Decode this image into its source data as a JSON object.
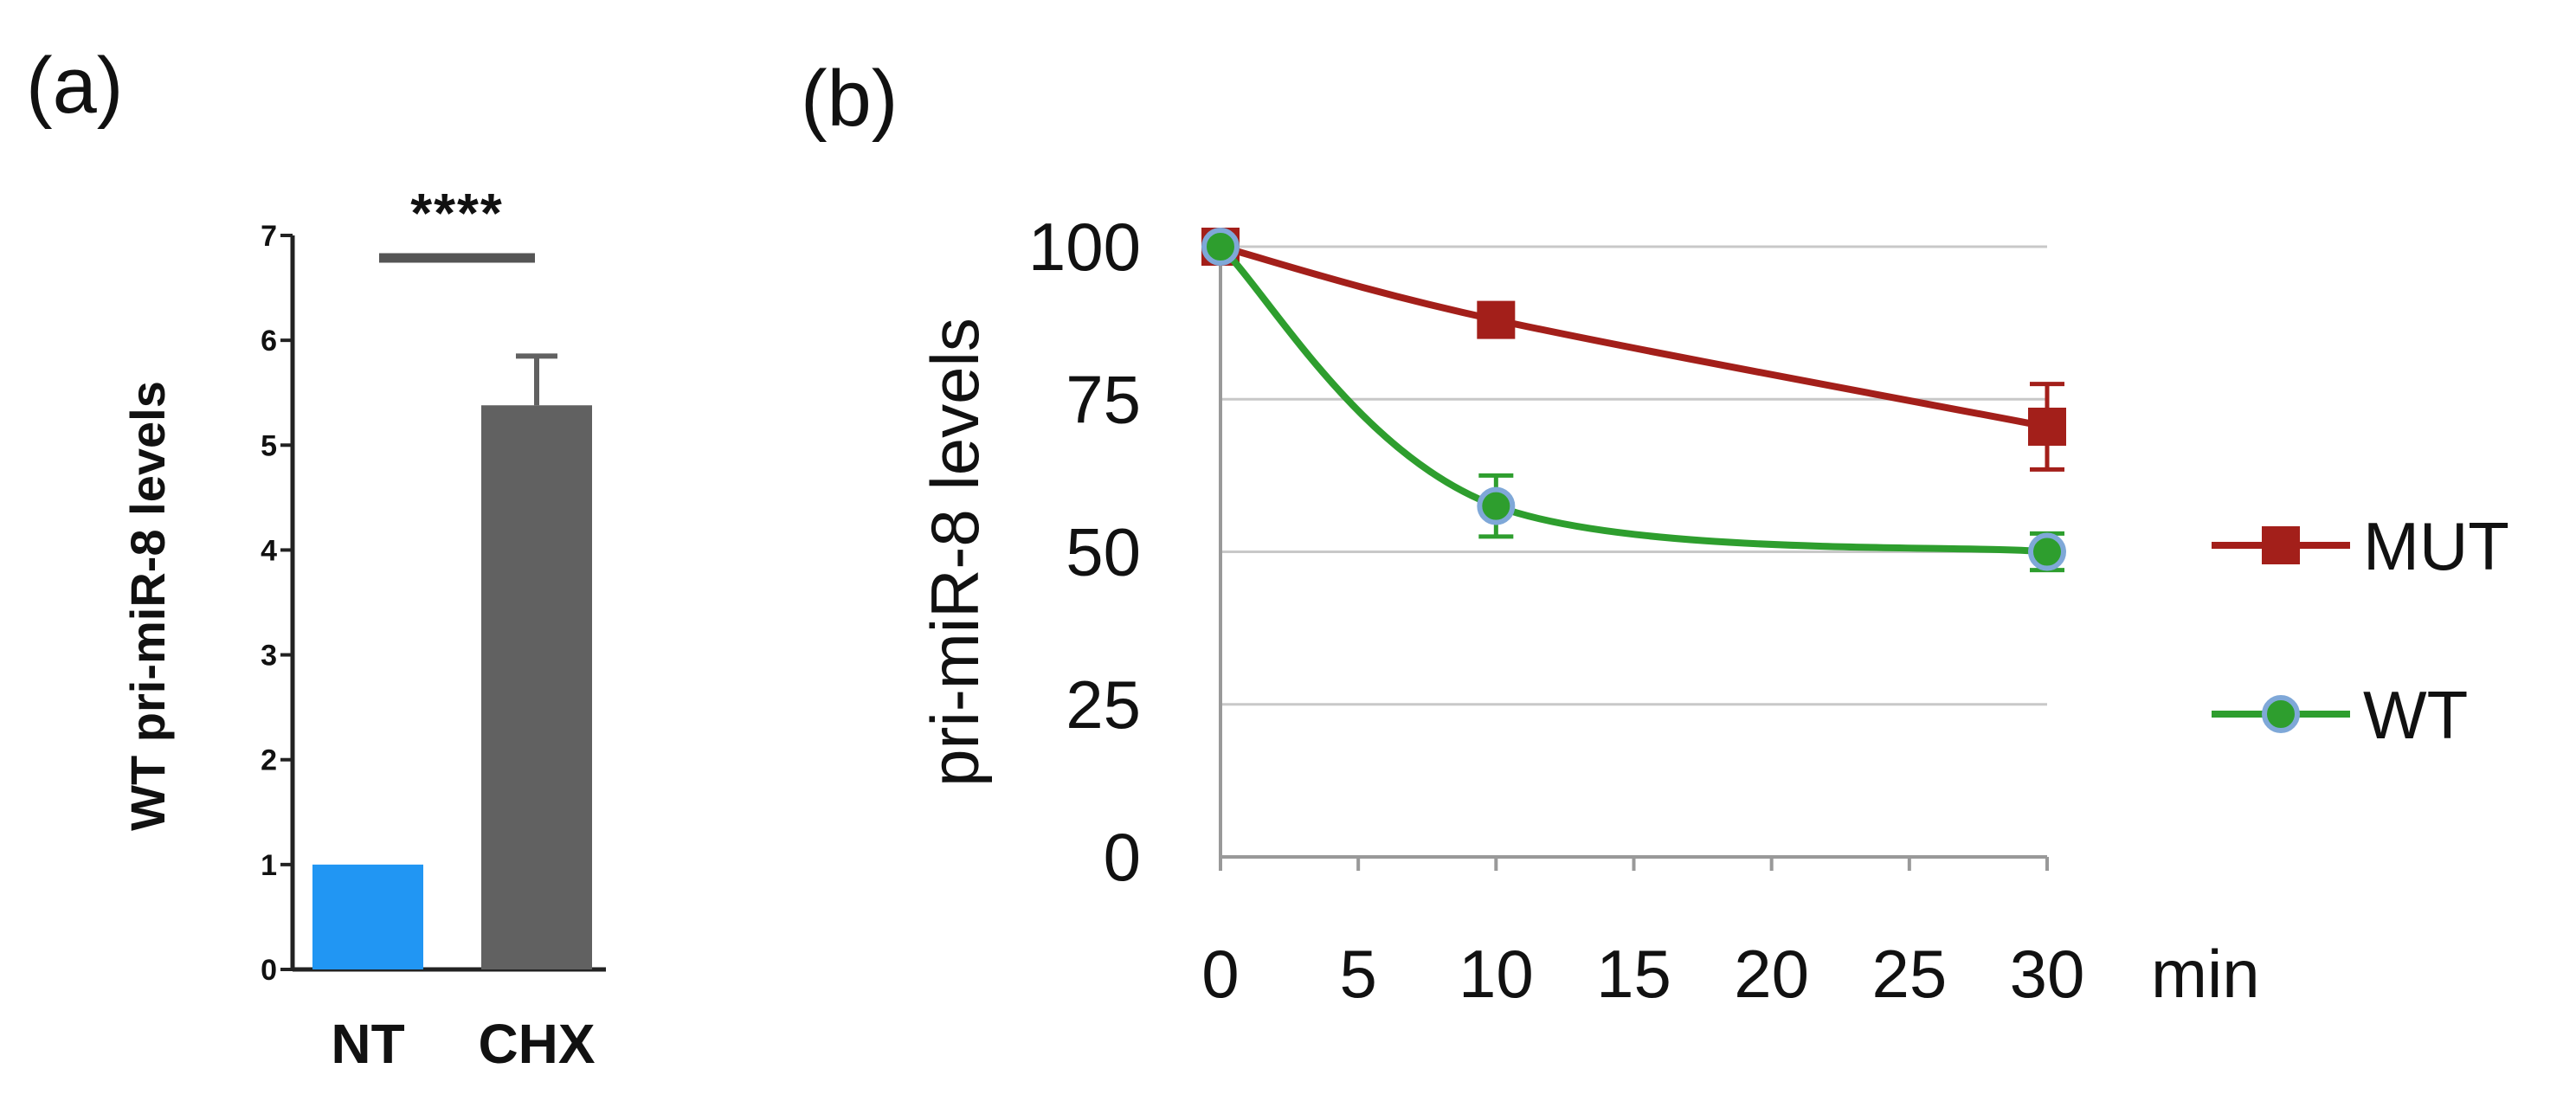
{
  "panels": {
    "a": "(a)",
    "b": "(b)"
  },
  "chart_data": [
    {
      "type": "bar",
      "panel": "a",
      "ylabel": "WT pri-miR-8 levels",
      "xlabel": "",
      "ylim": [
        0,
        7
      ],
      "yticks": [
        0,
        1,
        2,
        3,
        4,
        5,
        6,
        7
      ],
      "categories": [
        "NT",
        "CHX"
      ],
      "values": [
        1.0,
        5.38
      ],
      "errors": [
        0,
        0.47
      ],
      "colors": [
        "#2196F3",
        "#616161"
      ],
      "significance": "****",
      "grid": false
    },
    {
      "type": "line",
      "panel": "b",
      "ylabel": "pri-miR-8 levels",
      "xlabel": "min",
      "xlim": [
        0,
        30
      ],
      "ylim": [
        0,
        100
      ],
      "xticks": [
        0,
        5,
        10,
        15,
        20,
        25,
        30
      ],
      "yticks": [
        0,
        25,
        50,
        75,
        100
      ],
      "grid": true,
      "legend_position": "right",
      "series": [
        {
          "name": "MUT",
          "x": [
            0,
            10,
            30
          ],
          "y": [
            100,
            88,
            70.5
          ],
          "errors": [
            1,
            2,
            7
          ],
          "color": "#A31F1A",
          "marker": "square"
        },
        {
          "name": "WT",
          "x": [
            0,
            10,
            30
          ],
          "y": [
            100,
            57.5,
            50
          ],
          "errors": [
            1,
            5,
            3
          ],
          "color": "#2E9E2E",
          "marker": "circle"
        }
      ]
    }
  ]
}
